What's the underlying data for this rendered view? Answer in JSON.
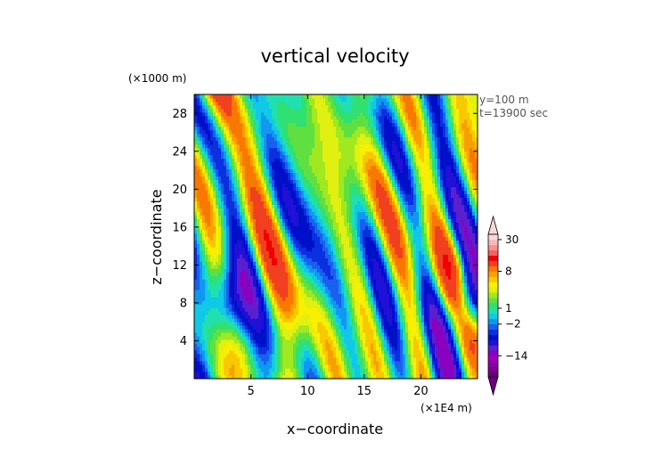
{
  "chart_data": {
    "type": "heatmap",
    "title": "vertical velocity",
    "xlabel": "x−coordinate",
    "ylabel": "z−coordinate",
    "x_unit": "(×1E4 m)",
    "y_unit": "(×1000 m)",
    "annotations": [
      "y=100 m",
      "t=13900 sec"
    ],
    "xlim": [
      0,
      25
    ],
    "ylim": [
      0,
      30
    ],
    "x_ticks": [
      5,
      10,
      15,
      20
    ],
    "x_tick_labels": [
      "5",
      "10",
      "15",
      "20"
    ],
    "y_ticks": [
      4,
      8,
      12,
      16,
      20,
      24,
      28
    ],
    "y_tick_labels": [
      "4",
      "8",
      "12",
      "16",
      "20",
      "24",
      "28"
    ],
    "colorbar": {
      "tick_labels": [
        "30",
        "8",
        "1",
        "−2",
        "−14"
      ],
      "levels": [
        -30,
        -26,
        -22,
        -18,
        -14,
        -10,
        -8,
        -6,
        -4,
        -3,
        -2,
        -1,
        0,
        1,
        2,
        3,
        4,
        5,
        6,
        7,
        8,
        10,
        14,
        18,
        22,
        26,
        30
      ],
      "colors": [
        "#6a007a",
        "#7a0090",
        "#8e00a8",
        "#a000b8",
        "#8a00c0",
        "#5a20d0",
        "#2010d8",
        "#0010c8",
        "#0a30e0",
        "#1a60f0",
        "#1098f0",
        "#10c8e8",
        "#20e0b0",
        "#30e070",
        "#60e040",
        "#a0e820",
        "#e0f010",
        "#f8f000",
        "#f8c800",
        "#f8a000",
        "#f87800",
        "#f04020",
        "#f00000",
        "#f86060",
        "#f89090",
        "#f8b8b8",
        "#f8d8d8"
      ],
      "extend": "both"
    },
    "legend": "right"
  }
}
